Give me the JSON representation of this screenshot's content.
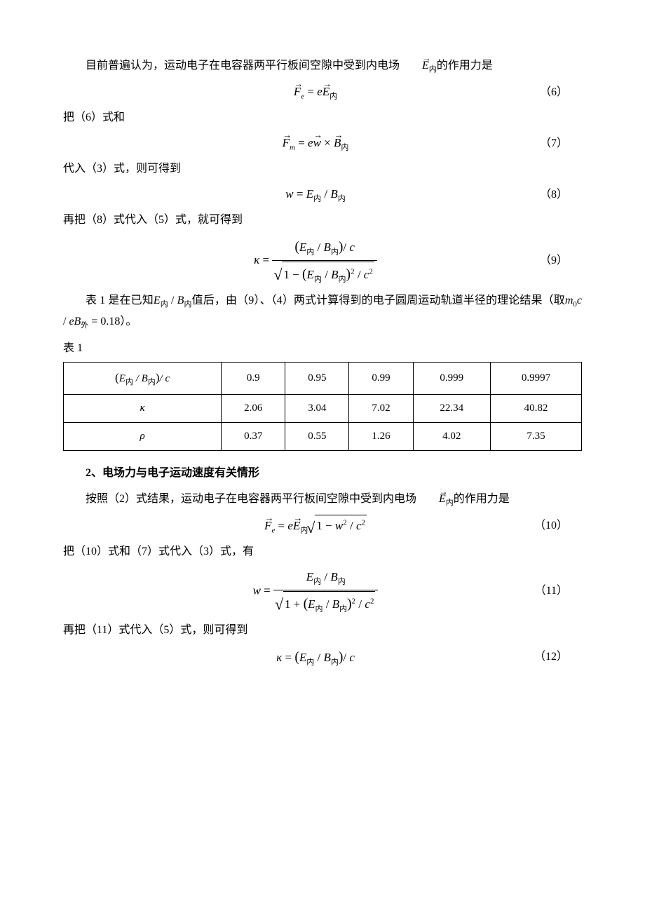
{
  "p1_a": "目前普遍认为，运动电子在电容器两平行板间空隙中受到内电场",
  "p1_b": "的作用力是",
  "eq6_num": "（6）",
  "p2": "把（6）式和",
  "eq7_num": "（7）",
  "p3": "代入（3）式，则可得到",
  "eq8_num": "（8）",
  "p4": "再把（8）式代入（5）式，就可得到",
  "eq9_num": "（9）",
  "p5_a": "表 1 是在已知",
  "p5_b": "值后，由（9）、（4）两式计算得到的电子圆周运动轨道半径的理论结果（取",
  "p5_c": "）。",
  "table_label": "表 1",
  "table": {
    "row1": [
      "0.9",
      "0.95",
      "0.99",
      "0.999",
      "0.9997"
    ],
    "row2_label": "κ",
    "row2": [
      "2.06",
      "3.04",
      "7.02",
      "22.34",
      "40.82"
    ],
    "row3_label": "ρ",
    "row3": [
      "0.37",
      "0.55",
      "1.26",
      "4.02",
      "7.35"
    ]
  },
  "heading2": "2、电场力与电子运动速度有关情形",
  "p6_a": "按照（2）式结果，运动电子在电容器两平行板间空隙中受到内电场",
  "p6_b": "的作用力是",
  "eq10_num": "（10）",
  "p7": "把（10）式和（7）式代入（3）式，有",
  "eq11_num": "（11）",
  "p8": "再把（11）式代入（5）式，则可得到",
  "eq12_num": "（12）",
  "const_val": "0.18"
}
